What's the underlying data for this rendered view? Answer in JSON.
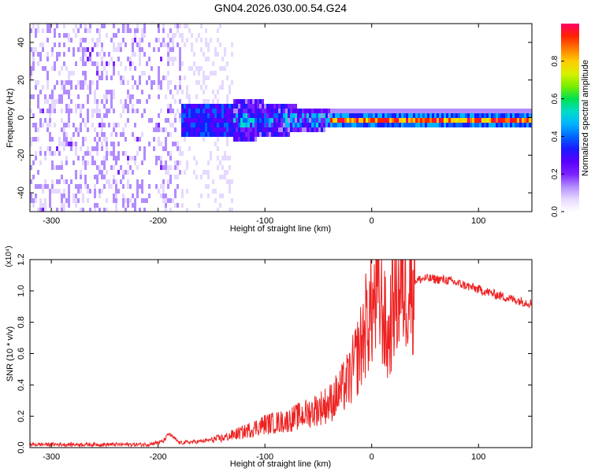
{
  "page": {
    "title": "GN04.2026.030.00.54.G24"
  },
  "chart_data": [
    {
      "type": "heatmap",
      "xlabel": "Height of straight line (km)",
      "ylabel": "Frequency (Hz)",
      "xlim": [
        -320,
        150
      ],
      "ylim": [
        -50,
        50
      ],
      "xticks": [
        -300,
        -200,
        -100,
        0,
        100
      ],
      "yticks": [
        -40,
        -20,
        0,
        20,
        40
      ],
      "colorbar": {
        "label": "Normalized spectral amplitude",
        "range": [
          0,
          1
        ],
        "ticks": [
          "0.0",
          "0.2",
          "0.4",
          "0.6",
          "0.8"
        ],
        "colormap": [
          "#ffffff",
          "#e6d9ff",
          "#b28cff",
          "#7a22ff",
          "#5a00ff",
          "#1a1aff",
          "#0066ff",
          "#00b4ff",
          "#00dcc8",
          "#00e050",
          "#7aee00",
          "#d8f000",
          "#ffcc00",
          "#ff7a00",
          "#ff2200",
          "#ff0066"
        ]
      },
      "description_regions": [
        {
          "x_from": -320,
          "x_to": -180,
          "level": 0.15
        },
        {
          "x_from": -180,
          "x_to": -40,
          "level": 0.35
        },
        {
          "x_from": -40,
          "x_to": 150,
          "level": 0.9
        }
      ]
    },
    {
      "type": "line",
      "xlabel": "Height of straight line (km)",
      "ylabel": "SNR (10 * v/v)",
      "yscale_note": "(x10⁴)",
      "xlim": [
        -320,
        150
      ],
      "ylim": [
        0,
        1.2
      ],
      "xticks": [
        -300,
        -200,
        -100,
        0,
        100
      ],
      "yticks": [
        0.0,
        0.2,
        0.4,
        0.6,
        0.8,
        1.0,
        1.2
      ],
      "color": "#ee2222",
      "series": [
        {
          "x": [
            -320,
            -300,
            -250,
            -210,
            -195,
            -190,
            -180,
            -160,
            -140,
            -120,
            -100,
            -80,
            -60,
            -40,
            -30,
            -20,
            -10,
            -5,
            0,
            5,
            10,
            15,
            20,
            30,
            50,
            70,
            90,
            110,
            130,
            150
          ],
          "values": [
            0.02,
            0.02,
            0.02,
            0.02,
            0.04,
            0.09,
            0.03,
            0.04,
            0.06,
            0.1,
            0.15,
            0.17,
            0.22,
            0.28,
            0.35,
            0.45,
            0.65,
            0.8,
            0.88,
            0.95,
            0.9,
            0.65,
            0.95,
            1.05,
            1.08,
            1.07,
            1.03,
            0.99,
            0.95,
            0.92
          ]
        }
      ]
    }
  ]
}
